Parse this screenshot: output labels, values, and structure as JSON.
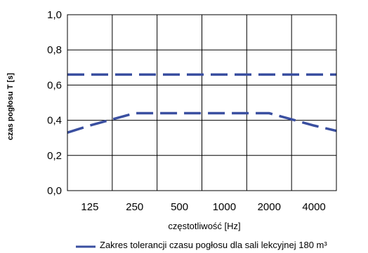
{
  "chart_data": {
    "type": "line",
    "x": [
      "125",
      "250",
      "500",
      "1000",
      "2000",
      "4000"
    ],
    "xlabel": "częstotliwość [Hz]",
    "ylabel": "czas pogłosu T [s]",
    "ylim": [
      0.0,
      1.0
    ],
    "y_ticks": [
      "0,0",
      "0,2",
      "0,4",
      "0,6",
      "0,8",
      "1,0"
    ],
    "grid": true,
    "legend_position": "bottom",
    "series": [
      {
        "name": "Zakres tolerancji czasu pogłosu dla sali lekcyjnej 180 m³",
        "style": "dashed",
        "color": "#3a4fa0",
        "upper": [
          0.66,
          0.66,
          0.66,
          0.66,
          0.66,
          0.66
        ],
        "lower": [
          0.37,
          0.44,
          0.44,
          0.44,
          0.44,
          0.37
        ],
        "lower_x_extent": [
          0.33,
          0.34
        ]
      }
    ]
  }
}
